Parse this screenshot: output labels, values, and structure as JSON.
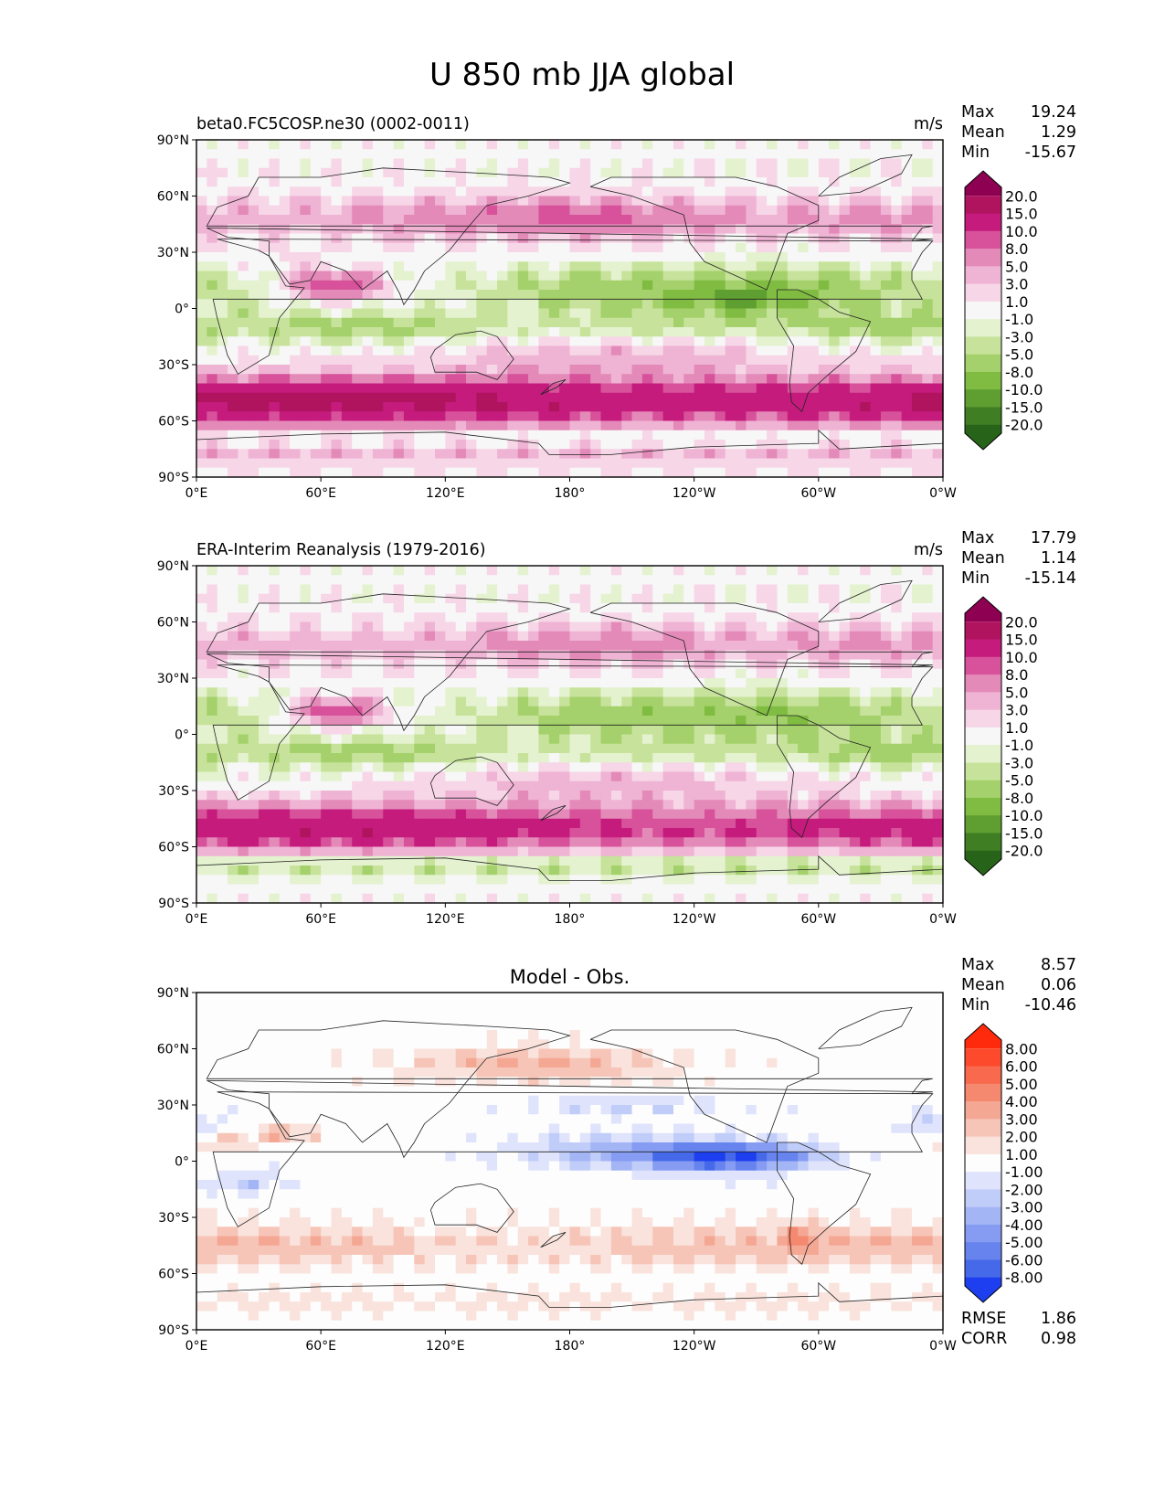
{
  "suptitle": "U 850 mb JJA global",
  "chart_data": [
    {
      "type": "heatmap",
      "title_left": "beta0.FC5COSP.ne30 (0002-0011)",
      "units": "m/s",
      "xlim": [
        0,
        360
      ],
      "ylim": [
        -90,
        90
      ],
      "x_tick_labels": [
        "0°E",
        "60°E",
        "120°E",
        "180°",
        "120°W",
        "60°W",
        "0°W"
      ],
      "y_tick_labels": [
        "90°N",
        "60°N",
        "30°N",
        "0°",
        "30°S",
        "60°S",
        "90°S"
      ],
      "stats": {
        "labels": [
          "Max",
          "Mean",
          "Min"
        ],
        "values": [
          "19.24",
          "1.29",
          "-15.67"
        ]
      },
      "colorbar": {
        "levels": [
          "20.0",
          "15.0",
          "10.0",
          "8.0",
          "5.0",
          "3.0",
          "1.0",
          "-1.0",
          "-3.0",
          "-5.0",
          "-8.0",
          "-10.0",
          "-15.0",
          "-20.0"
        ],
        "colors": [
          "#8e0152",
          "#b0145f",
          "#c51b7d",
          "#d7529a",
          "#e48ab9",
          "#efb3d4",
          "#f7d6e7",
          "#f7f7f7",
          "#e4f2cf",
          "#c7e39b",
          "#a4d16b",
          "#7fbc41",
          "#5f9e30",
          "#3f7e22",
          "#276419"
        ]
      },
      "field": "model"
    },
    {
      "type": "heatmap",
      "title_left": "ERA-Interim Reanalysis (1979-2016)",
      "units": "m/s",
      "xlim": [
        0,
        360
      ],
      "ylim": [
        -90,
        90
      ],
      "x_tick_labels": [
        "0°E",
        "60°E",
        "120°E",
        "180°",
        "120°W",
        "60°W",
        "0°W"
      ],
      "y_tick_labels": [
        "90°N",
        "60°N",
        "30°N",
        "0°",
        "30°S",
        "60°S",
        "90°S"
      ],
      "stats": {
        "labels": [
          "Max",
          "Mean",
          "Min"
        ],
        "values": [
          "17.79",
          "1.14",
          "-15.14"
        ]
      },
      "colorbar": {
        "levels": [
          "20.0",
          "15.0",
          "10.0",
          "8.0",
          "5.0",
          "3.0",
          "1.0",
          "-1.0",
          "-3.0",
          "-5.0",
          "-8.0",
          "-10.0",
          "-15.0",
          "-20.0"
        ],
        "colors": [
          "#8e0152",
          "#b0145f",
          "#c51b7d",
          "#d7529a",
          "#e48ab9",
          "#efb3d4",
          "#f7d6e7",
          "#f7f7f7",
          "#e4f2cf",
          "#c7e39b",
          "#a4d16b",
          "#7fbc41",
          "#5f9e30",
          "#3f7e22",
          "#276419"
        ]
      },
      "field": "obs"
    },
    {
      "type": "heatmap",
      "title_center": "Model - Obs.",
      "xlim": [
        0,
        360
      ],
      "ylim": [
        -90,
        90
      ],
      "x_tick_labels": [
        "0°E",
        "60°E",
        "120°E",
        "180°",
        "120°W",
        "60°W",
        "0°W"
      ],
      "y_tick_labels": [
        "90°N",
        "60°N",
        "30°N",
        "0°",
        "30°S",
        "60°S",
        "90°S"
      ],
      "stats": {
        "labels": [
          "Max",
          "Mean",
          "Min"
        ],
        "values": [
          "8.57",
          "0.06",
          "-10.46"
        ]
      },
      "extra_stats": {
        "labels": [
          "RMSE",
          "CORR"
        ],
        "values": [
          "1.86",
          "0.98"
        ]
      },
      "colorbar": {
        "levels": [
          "8.00",
          "6.00",
          "5.00",
          "4.00",
          "3.00",
          "2.00",
          "1.00",
          "-1.00",
          "-2.00",
          "-3.00",
          "-4.00",
          "-5.00",
          "-6.00",
          "-8.00"
        ],
        "colors": [
          "#ff2a0c",
          "#fd4a2c",
          "#f8694d",
          "#f4896f",
          "#f4a793",
          "#f6c5b8",
          "#f9e3dc",
          "#fdfdfd",
          "#dfe4fc",
          "#c1cdf9",
          "#a3b5f5",
          "#859cf2",
          "#6683ee",
          "#4669ea",
          "#1d3ff0"
        ]
      },
      "field": "diff"
    }
  ]
}
